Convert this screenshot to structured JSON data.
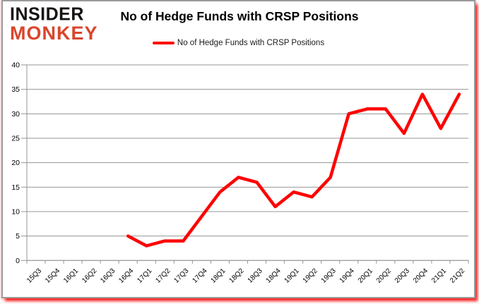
{
  "brand": {
    "line1": "INSIDER",
    "line2": "MONKEY"
  },
  "header": {
    "title": "No of Hedge Funds with CRSP Positions"
  },
  "legend": {
    "label": "No of Hedge Funds with CRSP Positions"
  },
  "colors": {
    "series": "#fe0000",
    "grid": "#969696",
    "axis_text": "#000000",
    "logo_black": "#161413",
    "logo_red": "#d9452c",
    "border_glow": "#ff0000",
    "background": "#ffffff"
  },
  "chart_data": {
    "type": "line",
    "title": "No of Hedge Funds with CRSP Positions",
    "xlabel": "",
    "ylabel": "",
    "ylim": [
      0,
      40
    ],
    "ytick_step": 5,
    "grid": true,
    "legend_position": "top",
    "categories": [
      "15Q3",
      "15Q4",
      "16Q1",
      "16Q2",
      "16Q3",
      "16Q4",
      "17Q1",
      "17Q2",
      "17Q3",
      "17Q4",
      "18Q1",
      "18Q2",
      "18Q3",
      "18Q4",
      "19Q1",
      "19Q2",
      "19Q3",
      "19Q4",
      "20Q1",
      "20Q2",
      "20Q3",
      "20Q4",
      "21Q1",
      "21Q2"
    ],
    "series": [
      {
        "name": "No of Hedge Funds with CRSP Positions",
        "color": "#fe0000",
        "values": [
          null,
          null,
          null,
          null,
          null,
          5,
          3,
          4,
          4,
          9,
          14,
          17,
          16,
          11,
          14,
          13,
          17,
          30,
          31,
          31,
          26,
          34,
          27,
          34
        ]
      }
    ]
  }
}
